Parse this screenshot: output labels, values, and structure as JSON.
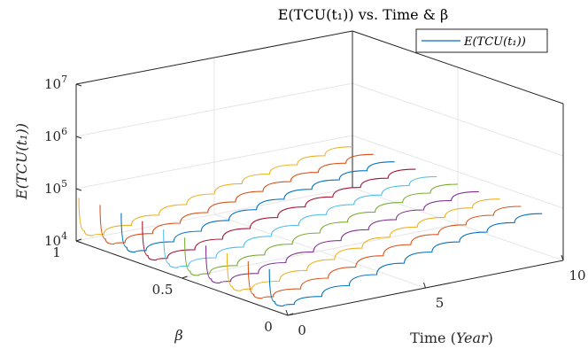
{
  "chart_data": {
    "type": "line",
    "projection": "3d",
    "title": "E(TCU(t₁)) vs. Time & β",
    "xlabel": "Time (Year)",
    "ylabel": "β",
    "zlabel": "E(TCU(t₁))",
    "x_ticks": [
      "0",
      "5",
      "10"
    ],
    "y_ticks": [
      "0",
      "0.5",
      "1"
    ],
    "z_ticks": [
      {
        "base": "10",
        "exp": "4"
      },
      {
        "base": "10",
        "exp": "5"
      },
      {
        "base": "10",
        "exp": "6"
      },
      {
        "base": "10",
        "exp": "7"
      }
    ],
    "xlim": [
      0,
      10
    ],
    "ylim": [
      0,
      1
    ],
    "zlim": [
      10000,
      10000000
    ],
    "zscale": "log",
    "grid": true,
    "legend": {
      "position": "top-right",
      "entries": [
        "E(TCU(t₁))"
      ]
    },
    "series": [
      {
        "beta": 1.0,
        "color": "#EDB120",
        "x": [
          0.1,
          0.3,
          0.6,
          1.0,
          2,
          3,
          4,
          5,
          6,
          7,
          8,
          9,
          10
        ],
        "z": [
          65000,
          14500,
          11000,
          10600,
          12500,
          15500,
          19500,
          24500,
          30500,
          37000,
          44000,
          52000,
          61000
        ]
      },
      {
        "beta": 0.9,
        "color": "#D95319",
        "x": [
          0.1,
          0.3,
          0.6,
          1.0,
          2,
          3,
          4,
          5,
          6,
          7,
          8,
          9,
          10
        ],
        "z": [
          66000,
          14000,
          10500,
          10200,
          12000,
          15000,
          19000,
          24000,
          30000,
          36500,
          43500,
          51500,
          60000
        ]
      },
      {
        "beta": 0.8,
        "color": "#0072BD",
        "x": [
          0.1,
          0.3,
          0.6,
          1.0,
          2,
          3,
          4,
          5,
          6,
          7,
          8,
          9,
          10
        ],
        "z": [
          64000,
          13500,
          10200,
          10000,
          11600,
          14600,
          18500,
          23500,
          29500,
          36000,
          43000,
          51000,
          59500
        ]
      },
      {
        "beta": 0.7,
        "color": "#A2142F",
        "x": [
          0.1,
          0.3,
          0.6,
          1.0,
          2,
          3,
          4,
          5,
          6,
          7,
          8,
          9,
          10
        ],
        "z": [
          62000,
          13000,
          10000,
          9800,
          11300,
          14200,
          18000,
          23000,
          29000,
          35500,
          42500,
          50500,
          59000
        ]
      },
      {
        "beta": 0.6,
        "color": "#4DBEEE",
        "x": [
          0.1,
          0.3,
          0.6,
          1.0,
          2,
          3,
          4,
          5,
          6,
          7,
          8,
          9,
          10
        ],
        "z": [
          60000,
          12800,
          9900,
          9700,
          11000,
          13900,
          17600,
          22600,
          28600,
          35000,
          42000,
          50000,
          58500
        ]
      },
      {
        "beta": 0.5,
        "color": "#77AC30",
        "x": [
          0.1,
          0.3,
          0.6,
          1.0,
          2,
          3,
          4,
          5,
          6,
          7,
          8,
          9,
          10
        ],
        "z": [
          58000,
          12600,
          9800,
          9600,
          10800,
          13600,
          17300,
          22300,
          28300,
          34700,
          41700,
          49700,
          58000
        ]
      },
      {
        "beta": 0.4,
        "color": "#7E2F8E",
        "x": [
          0.1,
          0.3,
          0.6,
          1.0,
          2,
          3,
          4,
          5,
          6,
          7,
          8,
          9,
          10
        ],
        "z": [
          57000,
          12400,
          9700,
          9500,
          10600,
          13400,
          17000,
          22000,
          28000,
          34400,
          41400,
          49400,
          57500
        ]
      },
      {
        "beta": 0.3,
        "color": "#EDB120",
        "x": [
          0.1,
          0.3,
          0.6,
          1.0,
          2,
          3,
          4,
          5,
          6,
          7,
          8,
          9,
          10
        ],
        "z": [
          56000,
          12300,
          9600,
          9400,
          10400,
          13200,
          16800,
          21800,
          27800,
          34200,
          41200,
          49200,
          57200
        ]
      },
      {
        "beta": 0.2,
        "color": "#D95319",
        "x": [
          0.1,
          0.3,
          0.6,
          1.0,
          2,
          3,
          4,
          5,
          6,
          7,
          8,
          9,
          10
        ],
        "z": [
          55000,
          12200,
          9500,
          9300,
          10300,
          13000,
          16600,
          21600,
          27600,
          34000,
          41000,
          49000,
          57000
        ]
      },
      {
        "beta": 0.1,
        "color": "#0072BD",
        "x": [
          0.1,
          0.3,
          0.6,
          1.0,
          2,
          3,
          4,
          5,
          6,
          7,
          8,
          9,
          10
        ],
        "z": [
          54000,
          12100,
          9400,
          9200,
          10200,
          12900,
          16500,
          21500,
          27500,
          33900,
          40900,
          48900,
          56900
        ]
      }
    ]
  }
}
